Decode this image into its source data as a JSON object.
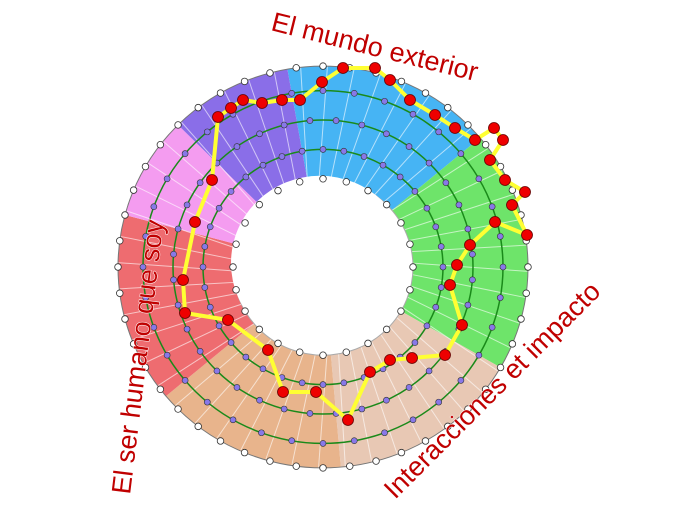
{
  "labels": {
    "top": "El mundo exterior",
    "left": "El ser humano que soy",
    "bottom_right": "Interacciones et impacto"
  },
  "colors": {
    "label": "#c00000",
    "path": "#ffff33",
    "path_node": "#ee0000",
    "ring_line": "#1a8a1a",
    "inner_node": "#8878e8",
    "sectors": [
      "#46b4f4",
      "#6ee46a",
      "#e8c8b4",
      "#e8b48c",
      "#ee6c70",
      "#f49cf0",
      "#8a6ee8"
    ]
  }
}
